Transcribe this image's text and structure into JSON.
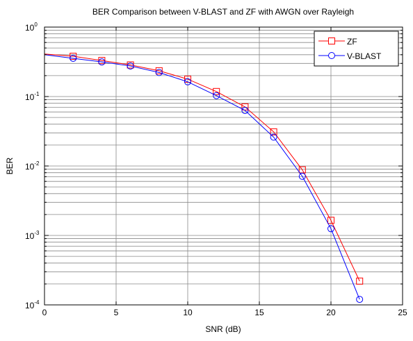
{
  "chart_data": {
    "type": "line",
    "title": "BER Comparison between V-BLAST and ZF with AWGN over Rayleigh",
    "xlabel": "SNR (dB)",
    "ylabel": "BER",
    "xlim": [
      0,
      25
    ],
    "ylim": [
      0.0001,
      1
    ],
    "yscale": "log",
    "grid": true,
    "legend_position": "top-right",
    "x_ticks": [
      "0",
      "5",
      "10",
      "15",
      "20",
      "25"
    ],
    "y_ticks": [
      {
        "base": "10",
        "exp": "0"
      },
      {
        "base": "10",
        "exp": "-1"
      },
      {
        "base": "10",
        "exp": "-2"
      },
      {
        "base": "10",
        "exp": "-3"
      },
      {
        "base": "10",
        "exp": "-4"
      }
    ],
    "x": [
      0,
      2,
      4,
      6,
      8,
      10,
      12,
      14,
      16,
      18,
      20,
      22
    ],
    "series": [
      {
        "name": "ZF",
        "color": "#ff0000",
        "marker": "square",
        "values": [
          0.41,
          0.38,
          0.33,
          0.285,
          0.235,
          0.178,
          0.118,
          0.071,
          0.031,
          0.0088,
          0.00165,
          0.00022
        ]
      },
      {
        "name": "V-BLAST",
        "color": "#0000ff",
        "marker": "circle",
        "values": [
          0.4,
          0.355,
          0.315,
          0.275,
          0.222,
          0.163,
          0.103,
          0.063,
          0.026,
          0.0071,
          0.00125,
          0.00012
        ]
      }
    ]
  }
}
